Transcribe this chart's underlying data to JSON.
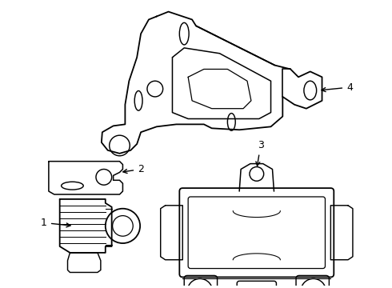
{
  "background_color": "#ffffff",
  "line_color": "#000000",
  "line_width": 1.3,
  "fig_width": 4.9,
  "fig_height": 3.6,
  "dpi": 100
}
